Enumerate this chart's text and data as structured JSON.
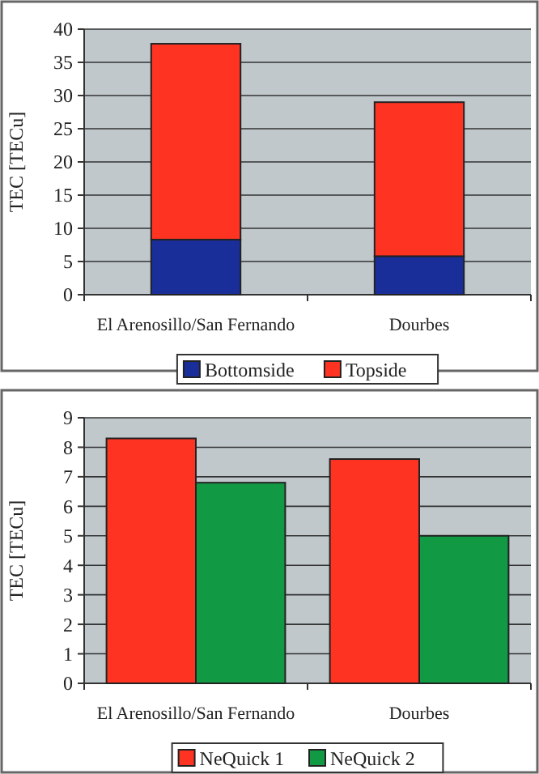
{
  "chart_data": [
    {
      "type": "bar",
      "stacked": true,
      "ylabel": "TEC [TECu]",
      "categories": [
        "El Arenosillo/San Fernando",
        "Dourbes"
      ],
      "series": [
        {
          "name": "Bottomside",
          "color": "#1a2e9a",
          "values": [
            8.3,
            5.8
          ]
        },
        {
          "name": "Topside",
          "color": "#ff3322",
          "values": [
            29.5,
            23.2
          ]
        }
      ],
      "ylim": [
        0,
        40
      ],
      "yticks": [
        0,
        5,
        10,
        15,
        20,
        25,
        30,
        35,
        40
      ],
      "grid": "y",
      "legend": "bottom"
    },
    {
      "type": "bar",
      "ylabel": "TEC [TECu]",
      "categories": [
        "El Arenosillo/San Fernando",
        "Dourbes"
      ],
      "series": [
        {
          "name": "NeQuick 1",
          "color": "#ff3322",
          "values": [
            8.3,
            7.6
          ]
        },
        {
          "name": "NeQuick 2",
          "color": "#119944",
          "values": [
            6.8,
            5.0
          ]
        }
      ],
      "ylim": [
        0,
        9
      ],
      "yticks": [
        0,
        1,
        2,
        3,
        4,
        5,
        6,
        7,
        8,
        9
      ],
      "grid": "y",
      "legend": "bottom"
    }
  ]
}
